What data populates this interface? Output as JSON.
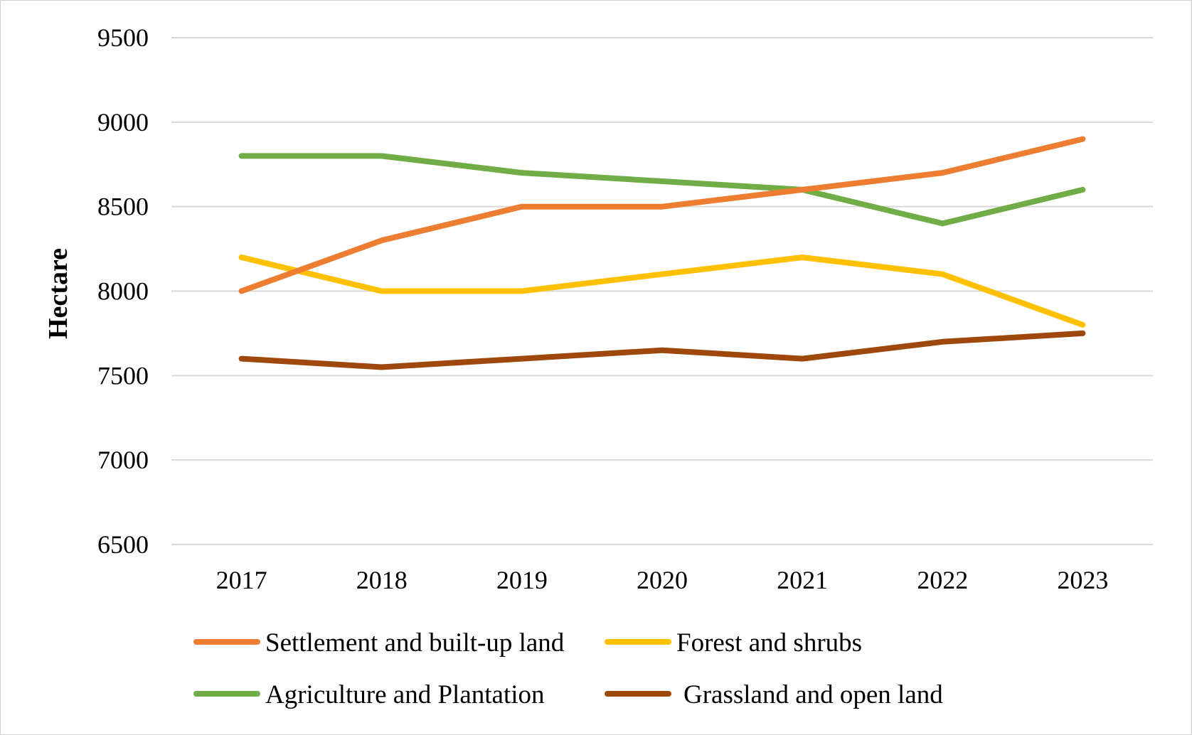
{
  "chart_data": {
    "type": "line",
    "title": "",
    "xlabel": "",
    "ylabel": "Hectare",
    "categories": [
      "2017",
      "2018",
      "2019",
      "2020",
      "2021",
      "2022",
      "2023"
    ],
    "ylim": [
      6500,
      9500
    ],
    "yticks": [
      9500,
      9000,
      8500,
      8000,
      7500,
      7000,
      6500
    ],
    "grid": true,
    "legend_position": "bottom",
    "series": [
      {
        "name": "Settlement and built-up land",
        "color": "#ED7D31",
        "values": [
          8000,
          8300,
          8500,
          8500,
          8600,
          8700,
          8900
        ]
      },
      {
        "name": "Forest and shrubs",
        "color": "#FFC000",
        "values": [
          8200,
          8000,
          8000,
          8100,
          8200,
          8100,
          7800
        ]
      },
      {
        "name": "Agriculture and Plantation",
        "color": "#70AD47",
        "values": [
          8800,
          8800,
          8700,
          8650,
          8600,
          8400,
          8600
        ]
      },
      {
        "name": "Grassland and open land",
        "color": "#9E480E",
        "values": [
          7600,
          7550,
          7600,
          7650,
          7600,
          7700,
          7750
        ]
      }
    ]
  }
}
